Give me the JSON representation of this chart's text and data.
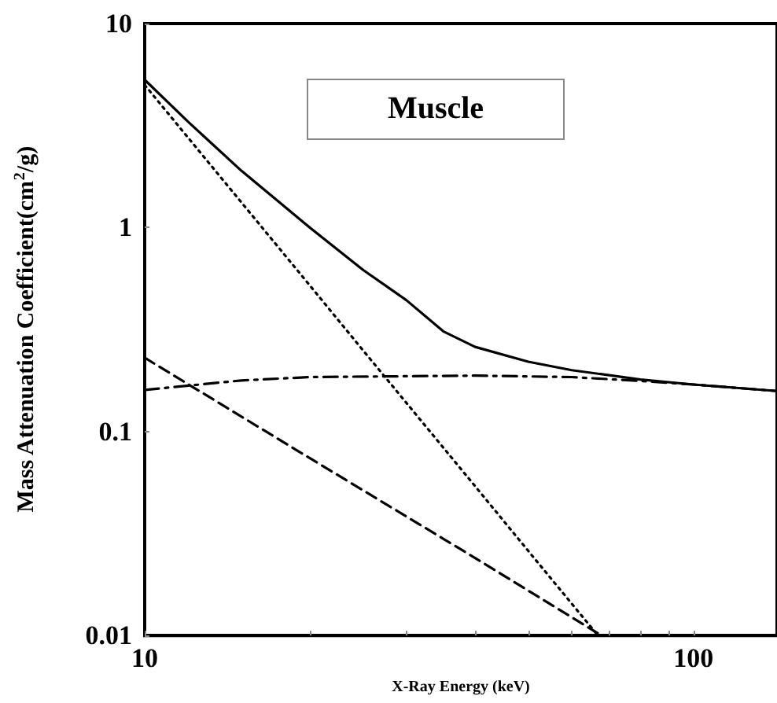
{
  "chart_data": {
    "type": "line",
    "xlabel": "X-Ray Energy (keV)",
    "ylabel": "Mass Attenuation Coefficient(cm$^{2}$/g)",
    "annotations": [
      "Muscle"
    ],
    "log": "xy",
    "grid": false,
    "marker": "none",
    "xlim": [
      10,
      142
    ],
    "ylim": [
      0.01,
      10
    ],
    "xticks": [
      10,
      {
        "value": 20,
        "label": null
      },
      {
        "value": 30,
        "label": null
      },
      {
        "value": 40,
        "label": null
      },
      {
        "value": 50,
        "label": null
      },
      {
        "value": 60,
        "label": null
      },
      {
        "value": 70,
        "label": null
      },
      {
        "value": 80,
        "label": null
      },
      {
        "value": 90,
        "label": null
      },
      100
    ],
    "yticks": [
      0.01,
      0.1,
      1,
      10
    ],
    "series": [
      {
        "color": "#000000",
        "line_style": "solid",
        "x": [
          10,
          12,
          15,
          20,
          25,
          30,
          35,
          40,
          50,
          60,
          80,
          100,
          142
        ],
        "values": [
          5.3,
          3.3,
          1.9,
          1.0,
          0.62,
          0.44,
          0.31,
          0.26,
          0.22,
          0.2,
          0.18,
          0.17,
          0.158
        ]
      },
      {
        "color": "#000000",
        "line_style": "dotted",
        "x": [
          10,
          15,
          20,
          25,
          30,
          40,
          50,
          67
        ],
        "values": [
          5.0,
          1.33,
          0.52,
          0.25,
          0.138,
          0.054,
          0.026,
          0.01
        ]
      },
      {
        "color": "#000000",
        "line_style": "dashed",
        "x": [
          10,
          20,
          40,
          68
        ],
        "values": [
          0.23,
          0.074,
          0.024,
          0.01
        ]
      },
      {
        "color": "#000000",
        "line_style": "dashdot",
        "x": [
          10,
          15,
          20,
          40,
          60,
          80,
          100,
          142
        ],
        "values": [
          0.16,
          0.178,
          0.185,
          0.188,
          0.185,
          0.177,
          0.17,
          0.158
        ]
      }
    ]
  }
}
